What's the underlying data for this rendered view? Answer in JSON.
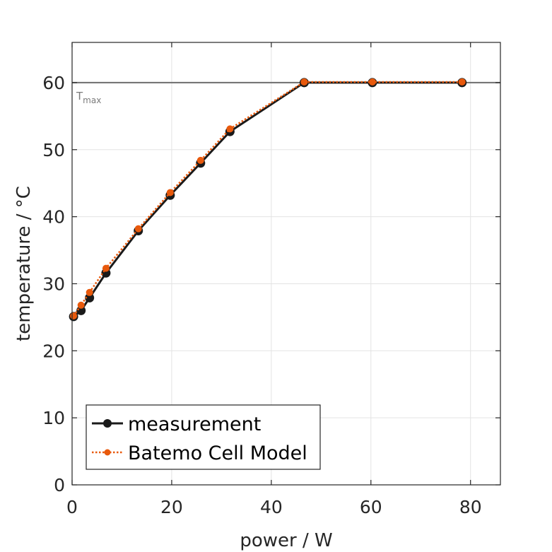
{
  "chart_data": {
    "type": "line",
    "xlabel": "power / W",
    "ylabel": "temperature / °C",
    "xlim": [
      0,
      86
    ],
    "ylim": [
      0,
      66
    ],
    "xticks": [
      0,
      20,
      40,
      60,
      80
    ],
    "yticks": [
      0,
      10,
      20,
      30,
      40,
      50,
      60
    ],
    "grid": true,
    "legend_position": "bottom-left",
    "reference_line": {
      "y": 60,
      "label": "T",
      "label_subscript": "max",
      "color": "#6e6e6e"
    },
    "series": [
      {
        "name": "measurement",
        "color": "#1a1a1a",
        "line_style": "solid",
        "x": [
          0.3,
          1.8,
          3.5,
          6.8,
          13.3,
          19.7,
          25.8,
          31.7,
          46.6,
          60.3,
          78.3
        ],
        "y": [
          25.1,
          26.0,
          27.9,
          31.6,
          37.9,
          43.2,
          48.0,
          52.7,
          60.0,
          60.0,
          60.0
        ]
      },
      {
        "name": "Batemo Cell Model",
        "color": "#e8590c",
        "line_style": "dotted",
        "x": [
          0.3,
          1.8,
          3.5,
          6.8,
          13.3,
          19.7,
          25.8,
          31.7,
          46.6,
          60.3,
          78.3
        ],
        "y": [
          25.2,
          26.8,
          28.7,
          32.3,
          38.2,
          43.6,
          48.4,
          53.1,
          60.1,
          60.1,
          60.1
        ]
      }
    ]
  }
}
